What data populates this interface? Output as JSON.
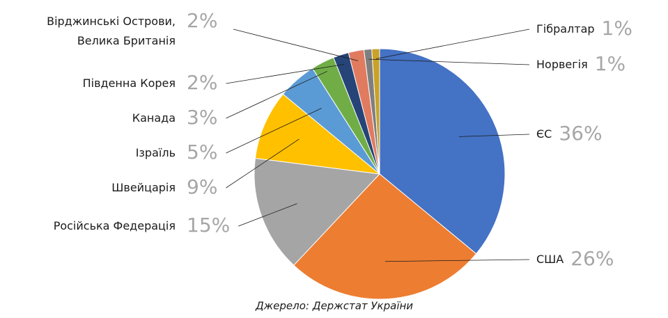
{
  "chart_data": {
    "type": "pie",
    "categories": [
      "ЄС",
      "США",
      "Російська Федерація",
      "Швейцарія",
      "Ізраїль",
      "Канада",
      "Південна Корея",
      "Вірджинські Острови,\nВелика Британія",
      "Норвегія",
      "Гібралтар"
    ],
    "values": [
      36,
      26,
      15,
      9,
      5,
      3,
      2,
      2,
      1,
      1
    ],
    "value_labels": [
      "36%",
      "26%",
      "15%",
      "9%",
      "5%",
      "3%",
      "2%",
      "2%",
      "1%",
      "1%"
    ],
    "colors": [
      "#4472c4",
      "#ed7d31",
      "#a5a5a5",
      "#ffc000",
      "#5b9bd5",
      "#70ad47",
      "#264478",
      "#e07b5f",
      "#7f7f7f",
      "#c9a227"
    ],
    "source": "Джерело: Держстат України"
  }
}
